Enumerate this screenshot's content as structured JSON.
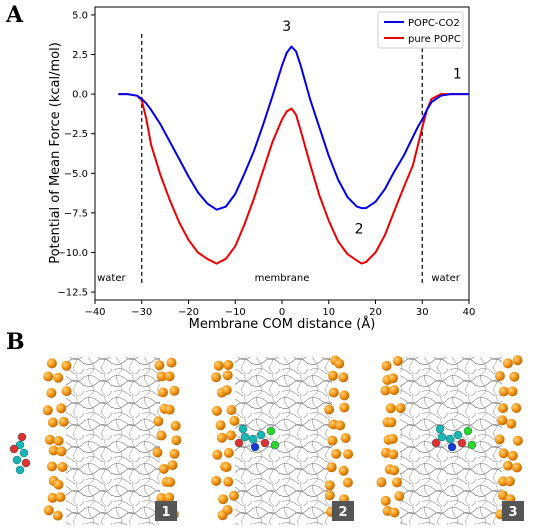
{
  "panel_a_letter": "A",
  "panel_b_letter": "B",
  "chart_data": {
    "type": "line",
    "title": "",
    "xlabel": "Membrane COM distance (Å)",
    "ylabel": "Potential of Mean Force (kcal/mol)",
    "xlim": [
      -40,
      40
    ],
    "ylim": [
      -13,
      5.5
    ],
    "xticks": [
      -40,
      -30,
      -20,
      -10,
      0,
      10,
      20,
      30,
      40
    ],
    "xtick_labels": [
      "−40",
      "−30",
      "−20",
      "−10",
      "0",
      "10",
      "20",
      "30",
      "40"
    ],
    "yticks": [
      -12.5,
      -10.0,
      -7.5,
      -5.0,
      -2.5,
      0.0,
      2.5,
      5.0
    ],
    "ytick_labels": [
      "−12.5",
      "−10.0",
      "−7.5",
      "−5.0",
      "−2.5",
      "0.0",
      "2.5",
      "5.0"
    ],
    "grid": false,
    "legend_position": "top-right",
    "series": [
      {
        "name": "POPC-CO2",
        "color": "#0000ee",
        "x": [
          -35,
          -33,
          -31,
          -30,
          -29,
          -28,
          -26,
          -24,
          -22,
          -20,
          -18,
          -16,
          -14,
          -12,
          -10,
          -8,
          -6,
          -4,
          -2,
          0,
          1,
          2,
          3,
          4,
          6,
          8,
          10,
          12,
          14,
          16,
          17,
          18,
          20,
          22,
          24,
          26,
          28,
          29,
          30,
          31,
          32,
          34,
          36,
          38,
          40
        ],
        "y": [
          0.0,
          0.0,
          -0.1,
          -0.3,
          -0.6,
          -1.0,
          -1.9,
          -3.0,
          -4.1,
          -5.2,
          -6.2,
          -6.9,
          -7.3,
          -7.1,
          -6.3,
          -5.0,
          -3.6,
          -1.9,
          -0.1,
          1.8,
          2.6,
          3.0,
          2.7,
          1.8,
          -0.3,
          -2.1,
          -3.9,
          -5.4,
          -6.5,
          -7.1,
          -7.2,
          -7.2,
          -6.8,
          -6.0,
          -4.9,
          -3.9,
          -2.7,
          -2.1,
          -1.6,
          -1.0,
          -0.5,
          -0.1,
          0.0,
          0.0,
          0.0
        ]
      },
      {
        "name": "pure POPC",
        "color": "#ee0000",
        "x": [
          -35,
          -33,
          -31,
          -30,
          -29,
          -28,
          -26,
          -24,
          -22,
          -20,
          -18,
          -16,
          -14,
          -12,
          -10,
          -8,
          -6,
          -4,
          -2,
          0,
          1,
          2,
          3,
          4,
          6,
          8,
          10,
          12,
          14,
          16,
          17,
          18,
          20,
          22,
          24,
          26,
          28,
          29,
          30,
          31,
          32,
          34,
          36,
          38,
          40
        ],
        "y": [
          0.0,
          0.0,
          -0.1,
          -0.4,
          -1.6,
          -3.2,
          -5.1,
          -6.7,
          -8.1,
          -9.2,
          -10.0,
          -10.4,
          -10.7,
          -10.4,
          -9.6,
          -8.2,
          -6.6,
          -4.8,
          -3.0,
          -1.6,
          -1.1,
          -0.9,
          -1.3,
          -2.3,
          -4.4,
          -6.4,
          -8.0,
          -9.3,
          -10.1,
          -10.5,
          -10.7,
          -10.6,
          -10.0,
          -8.9,
          -7.4,
          -5.9,
          -4.5,
          -3.3,
          -2.1,
          -1.0,
          -0.3,
          0.0,
          0.0,
          0.0,
          0.0
        ]
      }
    ],
    "vlines": [
      -30,
      30
    ],
    "region_labels": [
      {
        "text": "water",
        "x": -36.5,
        "y": -11.8
      },
      {
        "text": "membrane",
        "x": 0,
        "y": -11.8
      },
      {
        "text": "water",
        "x": 35.0,
        "y": -11.8
      }
    ],
    "point_labels": [
      {
        "text": "1",
        "x": 37.5,
        "y": 1.0
      },
      {
        "text": "2",
        "x": 16.5,
        "y": -8.8
      },
      {
        "text": "3",
        "x": 1.0,
        "y": 4.0
      }
    ]
  },
  "snapshots": [
    {
      "badge": "1"
    },
    {
      "badge": "2"
    },
    {
      "badge": "3"
    }
  ]
}
